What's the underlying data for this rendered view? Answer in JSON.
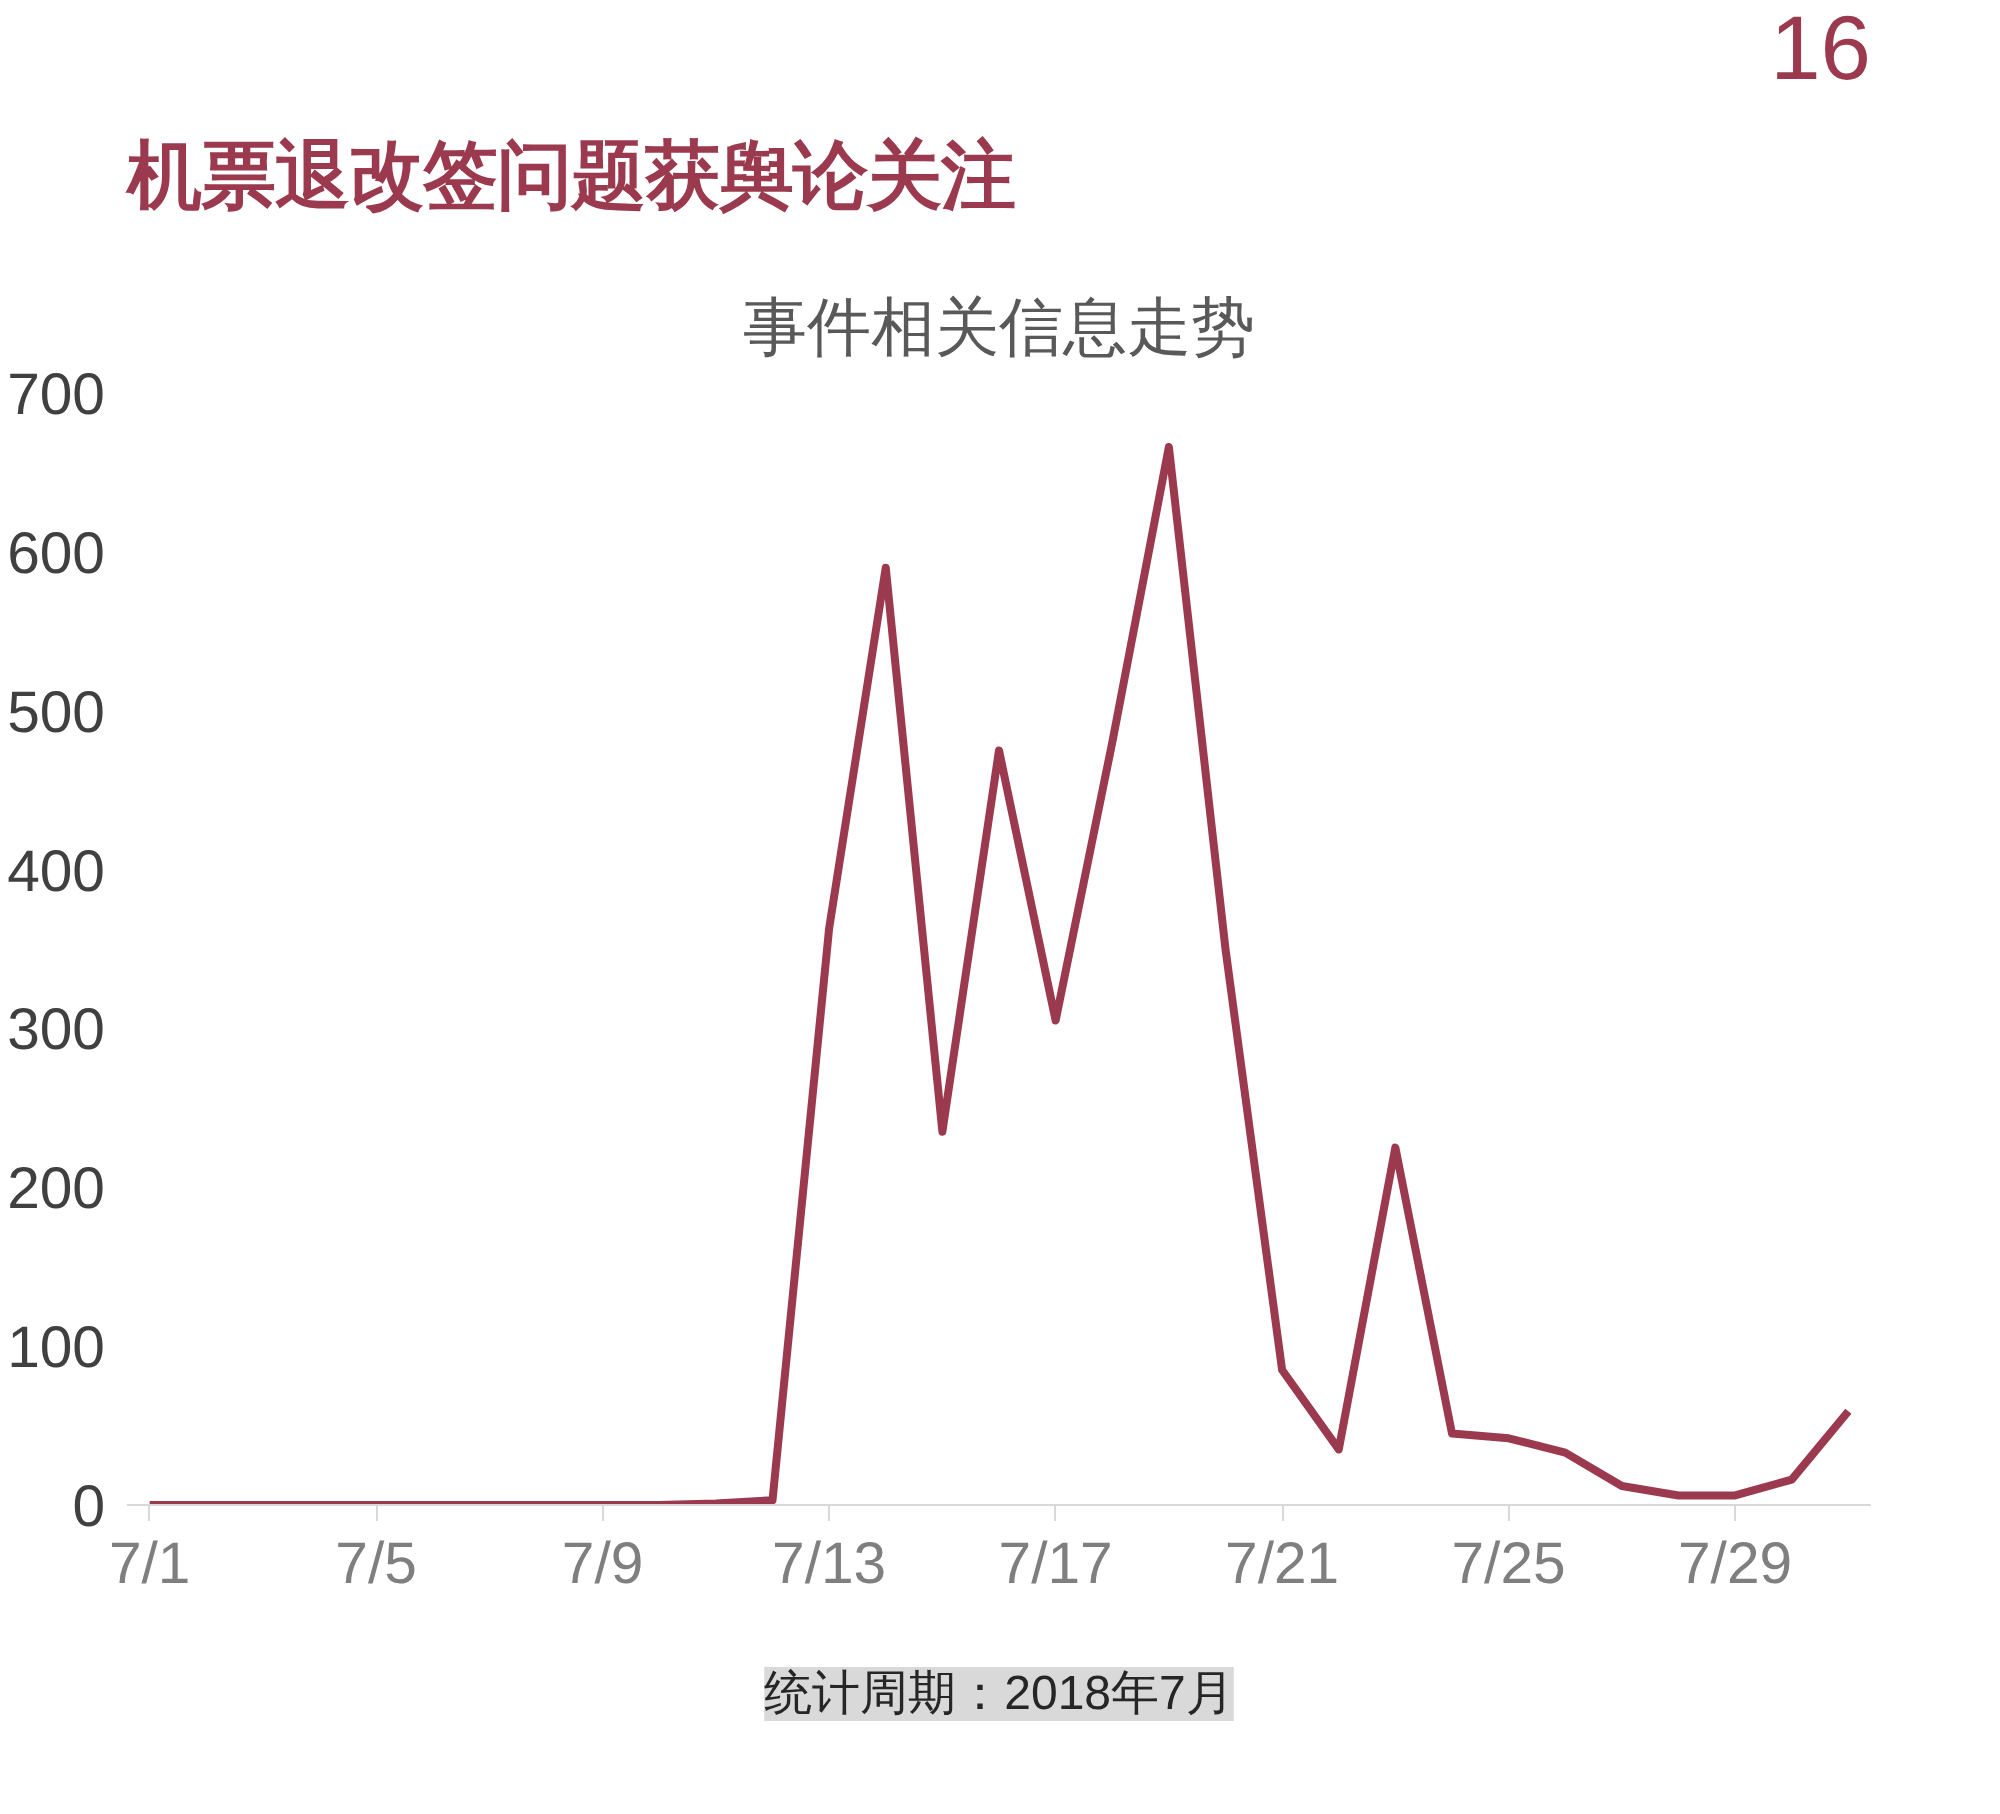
{
  "chart_data": {
    "type": "line",
    "title": "机票退改签问题获舆论关注",
    "subtitle": "事件相关信息走势",
    "categories": [
      "7/1",
      null,
      null,
      null,
      "7/5",
      null,
      null,
      null,
      "7/9",
      null,
      null,
      null,
      "7/13",
      null,
      null,
      null,
      "7/17",
      null,
      null,
      null,
      "7/21",
      null,
      null,
      null,
      "7/25",
      null,
      null,
      null,
      "7/29",
      null,
      null
    ],
    "series": [
      {
        "color": "#9b3a4e",
        "values": [
          0,
          0,
          0,
          0,
          0,
          0,
          0,
          0,
          0,
          0,
          1,
          3,
          363,
          590,
          235,
          475,
          305,
          480,
          666,
          350,
          85,
          35,
          225,
          45,
          42,
          33,
          12,
          6,
          6,
          16,
          59
        ]
      }
    ],
    "ylim": [
      0,
      700
    ],
    "yticks": [
      0,
      100,
      200,
      300,
      400,
      500,
      600,
      700
    ],
    "grid": false,
    "marker": "none",
    "line_style": "solid",
    "annotations": [
      "16",
      "统计周期：2018年7月"
    ]
  }
}
